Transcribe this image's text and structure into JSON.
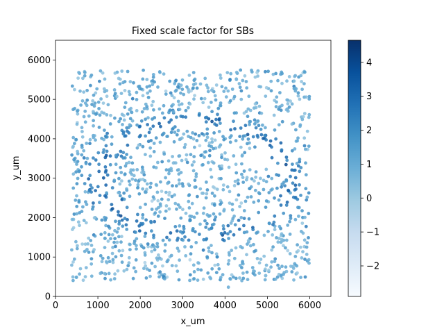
{
  "chart_data": {
    "type": "scatter",
    "title": "Fixed scale factor for SBs",
    "xlabel": "x_um",
    "ylabel": "y_um",
    "xlim": [
      0,
      6500
    ],
    "ylim": [
      0,
      6500
    ],
    "x_ticks": [
      0,
      1000,
      2000,
      3000,
      4000,
      5000,
      6000
    ],
    "y_ticks": [
      0,
      1000,
      2000,
      3000,
      4000,
      5000,
      6000
    ],
    "x_tick_labels": [
      "0",
      "1000",
      "2000",
      "3000",
      "4000",
      "5000",
      "6000"
    ],
    "y_tick_labels": [
      "0",
      "1000",
      "2000",
      "3000",
      "4000",
      "5000",
      "6000"
    ],
    "grid": false,
    "colormap": "Blues",
    "colorbar": {
      "vmin": -2.9,
      "vmax": 4.65,
      "ticks": [
        -2,
        -1,
        0,
        1,
        2,
        3,
        4
      ],
      "tick_labels": [
        "−2",
        "−1",
        "0",
        "1",
        "2",
        "3",
        "4"
      ],
      "placement": "right"
    },
    "point_cloud": {
      "approximate_extent": {
        "x": [
          380,
          6000
        ],
        "y": [
          400,
          5750
        ]
      },
      "point_count_approx": 1400,
      "pattern": "dense square tissue region with a darker (higher-value) elliptical ring centred near (3300, 3000)",
      "ring": {
        "center": [
          3300,
          3000
        ],
        "radius_x": 2300,
        "radius_y": 1450
      }
    },
    "colors": {
      "low": "#f7fbff",
      "mid": "#6baed6",
      "high": "#08306b"
    }
  }
}
